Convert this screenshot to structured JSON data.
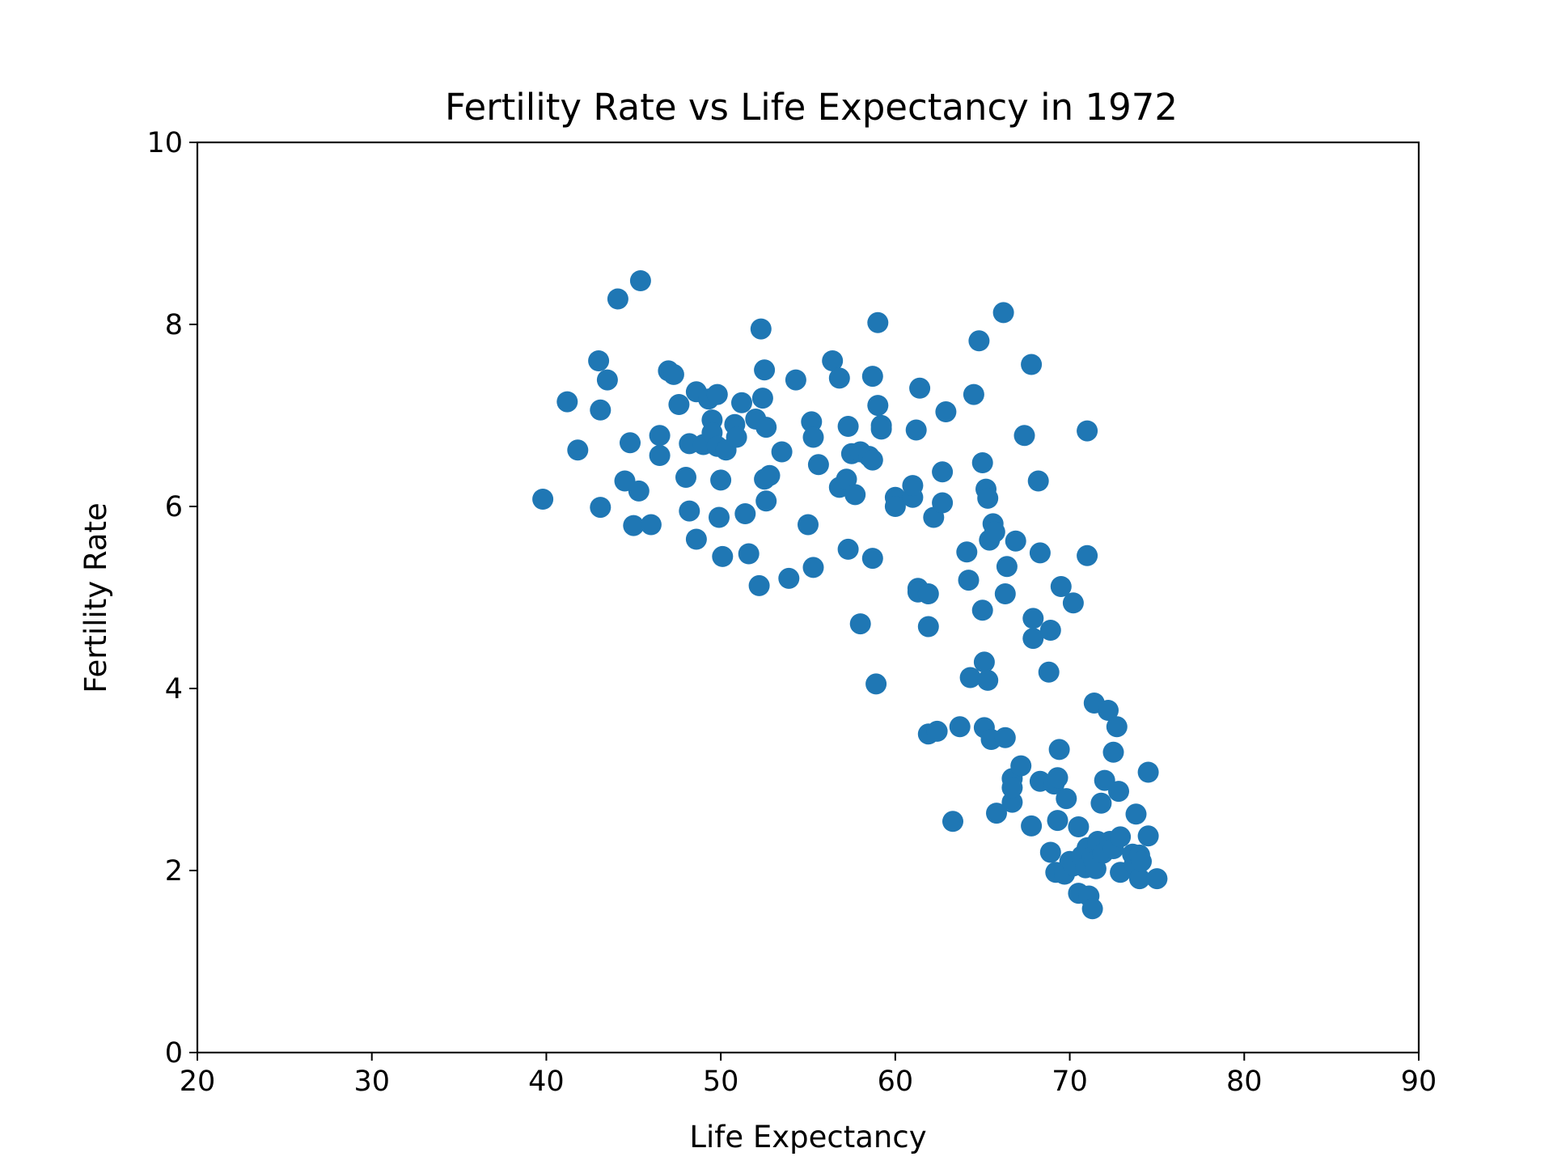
{
  "chart_data": {
    "type": "scatter",
    "title": "Fertility Rate vs Life Expectancy in 1972",
    "xlabel": "Life Expectancy",
    "ylabel": "Fertility Rate",
    "xlim": [
      20,
      90
    ],
    "ylim": [
      0,
      10
    ],
    "xticks": [
      20,
      30,
      40,
      50,
      60,
      70,
      80,
      90
    ],
    "yticks": [
      0,
      2,
      4,
      6,
      8,
      10
    ],
    "grid": false,
    "color": "#1f77b4",
    "points": [
      [
        39.8,
        6.08
      ],
      [
        41.2,
        7.15
      ],
      [
        41.8,
        6.62
      ],
      [
        43.0,
        7.6
      ],
      [
        43.1,
        7.06
      ],
      [
        43.1,
        5.99
      ],
      [
        43.5,
        7.39
      ],
      [
        44.1,
        8.28
      ],
      [
        44.5,
        6.28
      ],
      [
        44.8,
        6.7
      ],
      [
        45.0,
        5.79
      ],
      [
        45.3,
        6.17
      ],
      [
        45.4,
        8.48
      ],
      [
        46.0,
        5.8
      ],
      [
        46.5,
        6.78
      ],
      [
        46.5,
        6.56
      ],
      [
        47.0,
        7.49
      ],
      [
        47.3,
        7.45
      ],
      [
        47.6,
        7.12
      ],
      [
        48.0,
        6.32
      ],
      [
        48.2,
        5.95
      ],
      [
        48.2,
        6.69
      ],
      [
        48.6,
        7.26
      ],
      [
        48.6,
        5.64
      ],
      [
        49.0,
        6.68
      ],
      [
        49.3,
        7.18
      ],
      [
        49.5,
        6.95
      ],
      [
        49.5,
        6.81
      ],
      [
        49.8,
        7.23
      ],
      [
        49.8,
        6.66
      ],
      [
        49.9,
        5.88
      ],
      [
        50.0,
        6.29
      ],
      [
        50.1,
        5.45
      ],
      [
        50.3,
        6.62
      ],
      [
        50.8,
        6.9
      ],
      [
        50.9,
        6.76
      ],
      [
        51.2,
        7.14
      ],
      [
        51.4,
        5.92
      ],
      [
        51.6,
        5.48
      ],
      [
        52.0,
        6.96
      ],
      [
        52.2,
        5.13
      ],
      [
        52.3,
        7.95
      ],
      [
        52.4,
        7.19
      ],
      [
        52.5,
        7.5
      ],
      [
        52.5,
        6.3
      ],
      [
        52.6,
        6.87
      ],
      [
        52.6,
        6.06
      ],
      [
        52.8,
        6.34
      ],
      [
        53.5,
        6.6
      ],
      [
        53.9,
        5.21
      ],
      [
        54.3,
        7.39
      ],
      [
        55.0,
        5.8
      ],
      [
        55.2,
        6.93
      ],
      [
        55.3,
        6.76
      ],
      [
        55.3,
        5.33
      ],
      [
        55.6,
        6.46
      ],
      [
        56.4,
        7.6
      ],
      [
        56.8,
        7.41
      ],
      [
        56.8,
        6.21
      ],
      [
        57.2,
        6.3
      ],
      [
        57.3,
        5.53
      ],
      [
        57.3,
        6.88
      ],
      [
        57.5,
        6.58
      ],
      [
        57.7,
        6.13
      ],
      [
        58.0,
        6.6
      ],
      [
        58.0,
        4.71
      ],
      [
        58.5,
        6.55
      ],
      [
        58.7,
        6.51
      ],
      [
        58.7,
        7.43
      ],
      [
        58.7,
        5.43
      ],
      [
        58.9,
        4.05
      ],
      [
        59.0,
        8.02
      ],
      [
        59.0,
        7.11
      ],
      [
        59.2,
        6.89
      ],
      [
        59.2,
        6.85
      ],
      [
        60.0,
        6.1
      ],
      [
        60.0,
        6.0
      ],
      [
        61.0,
        6.1
      ],
      [
        61.0,
        6.23
      ],
      [
        61.2,
        6.84
      ],
      [
        61.3,
        5.1
      ],
      [
        61.3,
        5.06
      ],
      [
        61.4,
        7.3
      ],
      [
        61.9,
        5.04
      ],
      [
        61.9,
        4.68
      ],
      [
        61.9,
        3.5
      ],
      [
        62.2,
        5.88
      ],
      [
        62.4,
        3.53
      ],
      [
        62.7,
        6.38
      ],
      [
        62.7,
        6.04
      ],
      [
        62.9,
        7.04
      ],
      [
        63.3,
        2.54
      ],
      [
        63.7,
        3.58
      ],
      [
        64.1,
        5.5
      ],
      [
        64.2,
        5.19
      ],
      [
        64.3,
        4.12
      ],
      [
        64.5,
        7.23
      ],
      [
        64.8,
        7.82
      ],
      [
        65.0,
        6.48
      ],
      [
        65.0,
        4.86
      ],
      [
        65.1,
        4.29
      ],
      [
        65.1,
        3.57
      ],
      [
        65.2,
        6.19
      ],
      [
        65.3,
        6.09
      ],
      [
        65.3,
        4.09
      ],
      [
        65.4,
        5.63
      ],
      [
        65.5,
        3.44
      ],
      [
        65.6,
        5.81
      ],
      [
        65.7,
        5.72
      ],
      [
        65.8,
        2.63
      ],
      [
        66.2,
        8.13
      ],
      [
        66.3,
        3.46
      ],
      [
        66.3,
        5.04
      ],
      [
        66.4,
        5.34
      ],
      [
        66.7,
        2.75
      ],
      [
        66.7,
        3.01
      ],
      [
        66.7,
        2.91
      ],
      [
        66.9,
        5.62
      ],
      [
        67.2,
        3.15
      ],
      [
        67.4,
        6.78
      ],
      [
        67.8,
        7.56
      ],
      [
        67.8,
        2.49
      ],
      [
        67.9,
        4.77
      ],
      [
        67.9,
        4.55
      ],
      [
        68.2,
        6.28
      ],
      [
        68.3,
        5.49
      ],
      [
        68.3,
        2.98
      ],
      [
        68.8,
        4.18
      ],
      [
        68.9,
        4.64
      ],
      [
        68.9,
        2.2
      ],
      [
        69.1,
        2.95
      ],
      [
        69.2,
        1.98
      ],
      [
        69.3,
        3.02
      ],
      [
        69.3,
        2.55
      ],
      [
        69.4,
        3.33
      ],
      [
        69.5,
        5.12
      ],
      [
        69.7,
        1.96
      ],
      [
        69.8,
        2.79
      ],
      [
        70.0,
        2.1
      ],
      [
        70.2,
        4.94
      ],
      [
        70.2,
        2.05
      ],
      [
        70.5,
        2.48
      ],
      [
        70.5,
        1.75
      ],
      [
        70.7,
        2.16
      ],
      [
        70.9,
        2.03
      ],
      [
        71.0,
        6.83
      ],
      [
        71.0,
        5.46
      ],
      [
        71.0,
        2.25
      ],
      [
        71.1,
        1.72
      ],
      [
        71.3,
        1.58
      ],
      [
        71.3,
        2.15
      ],
      [
        71.4,
        3.84
      ],
      [
        71.4,
        2.1
      ],
      [
        71.5,
        2.02
      ],
      [
        71.6,
        2.32
      ],
      [
        71.8,
        2.74
      ],
      [
        71.9,
        2.19
      ],
      [
        72.0,
        2.99
      ],
      [
        72.2,
        3.76
      ],
      [
        72.3,
        2.32
      ],
      [
        72.5,
        2.24
      ],
      [
        72.5,
        3.3
      ],
      [
        72.7,
        3.58
      ],
      [
        72.8,
        2.87
      ],
      [
        72.9,
        1.98
      ],
      [
        72.9,
        2.37
      ],
      [
        73.6,
        2.18
      ],
      [
        73.7,
        2.07
      ],
      [
        73.8,
        2.62
      ],
      [
        74.0,
        1.91
      ],
      [
        74.0,
        2.17
      ],
      [
        74.1,
        2.1
      ],
      [
        74.5,
        2.38
      ],
      [
        74.5,
        3.08
      ],
      [
        75.0,
        1.91
      ]
    ]
  }
}
